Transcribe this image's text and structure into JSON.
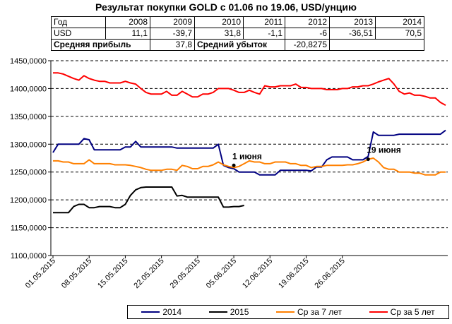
{
  "title": "Результат покупки GOLD с 01.06 по 19.06, USD/унцию",
  "table": {
    "header_label": "Год",
    "years": [
      "2008",
      "2009",
      "2010",
      "2011",
      "2012",
      "2013",
      "2014"
    ],
    "row_label": "USD",
    "values": [
      "11,1",
      "-39,7",
      "31,8",
      "-1,1",
      "-6",
      "-36,51",
      "70,5"
    ],
    "avg_profit_label": "Средняя прибыль",
    "avg_profit_value": "37,8",
    "avg_loss_label": "Средний убыток",
    "avg_loss_value": "-20,8275"
  },
  "chart_data": {
    "type": "line",
    "ylim": [
      1100,
      1450
    ],
    "y_ticks": [
      "1100,0000",
      "1150,0000",
      "1200,0000",
      "1250,0000",
      "1300,0000",
      "1350,0000",
      "1400,0000",
      "1450,0000"
    ],
    "x_ticks": [
      "01.05.2015",
      "08.05.2015",
      "15.05.2015",
      "22.05.2015",
      "29.05.2015",
      "05.06.2015",
      "12.06.2015",
      "19.06.2015",
      "26.06.2015"
    ],
    "grid": true,
    "legend_position": "bottom",
    "series": [
      {
        "name": "2014",
        "color": "#000080",
        "values": [
          1285,
          1300,
          1300,
          1300,
          1300,
          1300,
          1310,
          1308,
          1290,
          1290,
          1290,
          1290,
          1290,
          1290,
          1295,
          1295,
          1305,
          1295,
          1295,
          1295,
          1295,
          1295,
          1295,
          1295,
          1293,
          1293,
          1293,
          1293,
          1293,
          1293,
          1293,
          1293,
          1300,
          1262,
          1258,
          1256,
          1250,
          1250,
          1250,
          1250,
          1245,
          1245,
          1245,
          1245,
          1253,
          1253,
          1253,
          1253,
          1253,
          1253,
          1252,
          1259,
          1259,
          1272,
          1277,
          1277,
          1277,
          1277,
          1272,
          1272,
          1272,
          1278,
          1322,
          1316,
          1316,
          1316,
          1316,
          1318,
          1318,
          1318,
          1318,
          1318,
          1318,
          1318,
          1318,
          1318,
          1325
        ]
      },
      {
        "name": "2015",
        "color": "#000000",
        "values": [
          1177,
          1177,
          1177,
          1177,
          1188,
          1192,
          1192,
          1186,
          1186,
          1188,
          1188,
          1188,
          1186,
          1186,
          1192,
          1208,
          1218,
          1222,
          1223,
          1223,
          1223,
          1223,
          1223,
          1223,
          1207,
          1208,
          1205,
          1205,
          1205,
          1205,
          1205,
          1205,
          1205,
          1187,
          1187,
          1188,
          1188,
          1190,
          null,
          null,
          null,
          null,
          null,
          null,
          null,
          null,
          null,
          null,
          null,
          null,
          null,
          null,
          null,
          null,
          null,
          null,
          null,
          null,
          null,
          null,
          null,
          null,
          null,
          null,
          null,
          null,
          null,
          null,
          null,
          null,
          null,
          null,
          null,
          null,
          null,
          null,
          null
        ]
      },
      {
        "name": "Ср за 7 лет",
        "color": "#ff8000",
        "values": [
          1270,
          1270,
          1268,
          1268,
          1265,
          1265,
          1265,
          1272,
          1265,
          1265,
          1265,
          1265,
          1263,
          1263,
          1263,
          1262,
          1260,
          1258,
          1255,
          1253,
          1253,
          1253,
          1255,
          1255,
          1253,
          1262,
          1260,
          1256,
          1256,
          1260,
          1260,
          1263,
          1268,
          1263,
          1260,
          1258,
          1260,
          1265,
          1270,
          1268,
          1268,
          1265,
          1265,
          1268,
          1268,
          1268,
          1265,
          1265,
          1262,
          1262,
          1258,
          1260,
          1260,
          1262,
          1262,
          1262,
          1262,
          1263,
          1263,
          1265,
          1268,
          1273,
          1275,
          1268,
          1258,
          1255,
          1255,
          1250,
          1250,
          1250,
          1248,
          1248,
          1245,
          1245,
          1245,
          1250,
          1250
        ]
      },
      {
        "name": "Ср за 5 лет",
        "color": "#ff0000",
        "values": [
          1428,
          1428,
          1426,
          1422,
          1418,
          1415,
          1423,
          1418,
          1415,
          1413,
          1413,
          1410,
          1410,
          1410,
          1413,
          1410,
          1408,
          1400,
          1393,
          1390,
          1390,
          1390,
          1395,
          1388,
          1388,
          1395,
          1390,
          1385,
          1385,
          1390,
          1390,
          1393,
          1400,
          1400,
          1400,
          1397,
          1393,
          1393,
          1397,
          1393,
          1390,
          1405,
          1403,
          1403,
          1405,
          1405,
          1405,
          1408,
          1402,
          1402,
          1400,
          1400,
          1400,
          1398,
          1398,
          1398,
          1400,
          1400,
          1403,
          1403,
          1405,
          1405,
          1408,
          1412,
          1415,
          1418,
          1408,
          1395,
          1390,
          1392,
          1388,
          1388,
          1386,
          1383,
          1383,
          1375,
          1370
        ]
      }
    ],
    "annotations": [
      {
        "text": "1 июня",
        "x_index": 35,
        "y": 1262
      },
      {
        "text": "19 июня",
        "x_index": 61,
        "y": 1273
      }
    ]
  }
}
